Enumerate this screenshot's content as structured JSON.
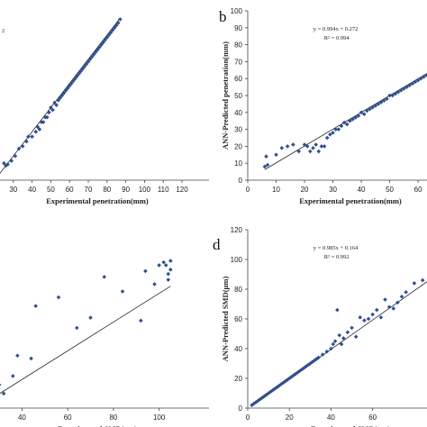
{
  "colors": {
    "marker": "#2e4f8f",
    "fit": "#222222",
    "axis": "#444444"
  },
  "chart_data": [
    {
      "panel": "a",
      "type": "scatter",
      "visible_letter": "",
      "equation": "",
      "r2_fragment": "2",
      "xlabel": "Experimental penetration(mm)",
      "ylabel": "",
      "xticks": [
        "30",
        "40",
        "50",
        "60",
        "70",
        "80",
        "90",
        "100",
        "110",
        "120"
      ],
      "yticks": [],
      "xlim": [
        20,
        120
      ],
      "ylim": [
        20,
        90
      ],
      "fit": {
        "slope": 1.0,
        "intercept": 0.0,
        "x_range": [
          20,
          87
        ]
      },
      "points": [
        [
          25,
          27
        ],
        [
          26,
          26
        ],
        [
          27,
          26.5
        ],
        [
          29,
          28
        ],
        [
          31,
          30
        ],
        [
          33,
          33
        ],
        [
          35,
          34
        ],
        [
          37,
          36
        ],
        [
          38,
          38
        ],
        [
          40,
          38
        ],
        [
          42,
          40
        ],
        [
          43,
          42
        ],
        [
          44,
          41
        ],
        [
          45,
          44
        ],
        [
          46,
          44
        ],
        [
          47,
          46
        ],
        [
          48,
          46
        ],
        [
          49,
          48
        ],
        [
          50,
          50
        ],
        [
          51,
          49
        ],
        [
          52,
          52
        ],
        [
          53,
          51
        ],
        [
          54,
          53
        ],
        [
          55,
          54
        ],
        [
          56,
          55
        ],
        [
          57,
          56
        ],
        [
          58,
          57
        ],
        [
          59,
          58
        ],
        [
          60,
          59
        ],
        [
          61,
          60
        ],
        [
          62,
          61
        ],
        [
          63,
          62
        ],
        [
          64,
          63
        ],
        [
          65,
          64
        ],
        [
          66,
          65
        ],
        [
          67,
          66
        ],
        [
          68,
          67
        ],
        [
          69,
          68
        ],
        [
          70,
          69
        ],
        [
          71,
          70
        ],
        [
          72,
          71
        ],
        [
          73,
          72
        ],
        [
          74,
          73
        ],
        [
          75,
          74
        ],
        [
          76,
          75
        ],
        [
          77,
          76
        ],
        [
          78,
          77
        ],
        [
          79,
          78
        ],
        [
          80,
          79
        ],
        [
          81,
          80
        ],
        [
          82,
          81
        ],
        [
          83,
          82
        ],
        [
          84,
          83
        ],
        [
          85,
          84
        ],
        [
          86,
          85
        ],
        [
          87,
          86.5
        ]
      ]
    },
    {
      "panel": "b",
      "type": "scatter",
      "visible_letter": "b",
      "equation": "y = 0.994x + 0.272",
      "r2": "R² = 0.994",
      "xlabel": "Experimental penetration(mm)",
      "ylabel": "ANN-Predicted penetration(mm)",
      "xticks": [
        "0",
        "10",
        "20",
        "30",
        "40",
        "50",
        "60"
      ],
      "yticks": [
        "0",
        "10",
        "20",
        "30",
        "40",
        "50",
        "60",
        "70",
        "80",
        "90",
        "100"
      ],
      "xlim": [
        0,
        66
      ],
      "ylim": [
        0,
        100
      ],
      "fit": {
        "slope": 0.994,
        "intercept": 0.272,
        "x_range": [
          6,
          66
        ]
      },
      "points": [
        [
          6,
          8
        ],
        [
          6.5,
          14
        ],
        [
          7,
          9
        ],
        [
          10,
          15
        ],
        [
          12,
          19
        ],
        [
          14,
          20
        ],
        [
          16,
          21
        ],
        [
          18,
          17
        ],
        [
          20,
          21
        ],
        [
          21,
          20
        ],
        [
          22,
          17
        ],
        [
          23,
          19
        ],
        [
          24,
          21
        ],
        [
          25,
          17
        ],
        [
          26,
          20
        ],
        [
          27,
          20
        ],
        [
          28,
          25
        ],
        [
          29,
          27
        ],
        [
          30,
          28
        ],
        [
          31,
          30
        ],
        [
          32,
          30
        ],
        [
          33,
          32
        ],
        [
          34,
          34
        ],
        [
          35,
          33
        ],
        [
          36,
          35
        ],
        [
          37,
          36
        ],
        [
          38,
          37
        ],
        [
          39,
          38
        ],
        [
          40,
          40
        ],
        [
          41,
          39
        ],
        [
          42,
          41
        ],
        [
          43,
          42
        ],
        [
          44,
          43
        ],
        [
          45,
          44
        ],
        [
          46,
          45
        ],
        [
          47,
          46
        ],
        [
          48,
          47
        ],
        [
          49,
          48
        ],
        [
          50,
          50
        ],
        [
          51,
          50
        ],
        [
          52,
          51
        ],
        [
          53,
          52
        ],
        [
          54,
          53
        ],
        [
          55,
          54
        ],
        [
          56,
          55
        ],
        [
          57,
          56
        ],
        [
          58,
          57
        ],
        [
          59,
          58
        ],
        [
          60,
          59
        ],
        [
          61,
          60
        ],
        [
          62,
          61
        ],
        [
          63,
          62
        ],
        [
          64,
          63
        ],
        [
          65,
          64
        ],
        [
          66,
          65
        ]
      ]
    },
    {
      "panel": "c",
      "type": "scatter",
      "visible_letter": "",
      "equation": "",
      "xlabel": "Experimental SMD(µm)",
      "ylabel": "",
      "xticks": [
        "40",
        "60",
        "80",
        "100"
      ],
      "yticks": [],
      "xlim": [
        28,
        110
      ],
      "ylim": [
        20,
        130
      ],
      "fit": {
        "slope": 0.985,
        "intercept": 0.2,
        "x_range": [
          28,
          105
        ]
      },
      "points": [
        [
          30,
          36
        ],
        [
          32,
          30
        ],
        [
          36,
          42
        ],
        [
          38,
          56
        ],
        [
          44,
          54
        ],
        [
          46,
          90
        ],
        [
          56,
          96
        ],
        [
          64,
          75
        ],
        [
          70,
          82
        ],
        [
          76,
          110
        ],
        [
          84,
          100
        ],
        [
          92,
          80
        ],
        [
          94,
          114
        ],
        [
          98,
          105
        ],
        [
          100,
          118
        ],
        [
          102,
          120
        ],
        [
          103,
          118
        ],
        [
          104,
          112
        ],
        [
          104,
          108
        ],
        [
          105,
          121
        ],
        [
          105,
          115
        ]
      ]
    },
    {
      "panel": "d",
      "type": "scatter",
      "visible_letter": "d",
      "equation": "y = 0.985x + 0.164",
      "r2": "R² = 0.992",
      "xlabel": "Experimental SMD(µm)",
      "ylabel": "ANN-Predicted SMD(µm)",
      "xticks": [
        "0",
        "20",
        "40",
        "60"
      ],
      "yticks": [
        "0",
        "20",
        "40",
        "60",
        "80",
        "100",
        "120"
      ],
      "xlim": [
        0,
        90
      ],
      "ylim": [
        0,
        120
      ],
      "fit": {
        "slope": 0.985,
        "intercept": 0.164,
        "x_range": [
          2,
          90
        ]
      },
      "points": [
        [
          2,
          2
        ],
        [
          3,
          3
        ],
        [
          4,
          4
        ],
        [
          5,
          5
        ],
        [
          6,
          6
        ],
        [
          7,
          7
        ],
        [
          8,
          8
        ],
        [
          9,
          9
        ],
        [
          10,
          10
        ],
        [
          11,
          11
        ],
        [
          12,
          12
        ],
        [
          13,
          13
        ],
        [
          14,
          14
        ],
        [
          15,
          15
        ],
        [
          16,
          16
        ],
        [
          17,
          17
        ],
        [
          18,
          18
        ],
        [
          19,
          19
        ],
        [
          20,
          20
        ],
        [
          21,
          21
        ],
        [
          22,
          22
        ],
        [
          23,
          23
        ],
        [
          24,
          24
        ],
        [
          25,
          25
        ],
        [
          26,
          26
        ],
        [
          27,
          27
        ],
        [
          28,
          28
        ],
        [
          29,
          29
        ],
        [
          30,
          30
        ],
        [
          31,
          31
        ],
        [
          32,
          32
        ],
        [
          33,
          33
        ],
        [
          34,
          34
        ],
        [
          36,
          36
        ],
        [
          38,
          38
        ],
        [
          40,
          40
        ],
        [
          41,
          43
        ],
        [
          42,
          45
        ],
        [
          43,
          66
        ],
        [
          44,
          49
        ],
        [
          45,
          43
        ],
        [
          46,
          47
        ],
        [
          48,
          51
        ],
        [
          50,
          54
        ],
        [
          52,
          48
        ],
        [
          54,
          61
        ],
        [
          56,
          59
        ],
        [
          58,
          60
        ],
        [
          60,
          63
        ],
        [
          62,
          66
        ],
        [
          64,
          61
        ],
        [
          66,
          73
        ],
        [
          68,
          68
        ],
        [
          70,
          67
        ],
        [
          72,
          71
        ],
        [
          74,
          75
        ],
        [
          76,
          78
        ],
        [
          80,
          84
        ],
        [
          84,
          86
        ]
      ]
    }
  ]
}
